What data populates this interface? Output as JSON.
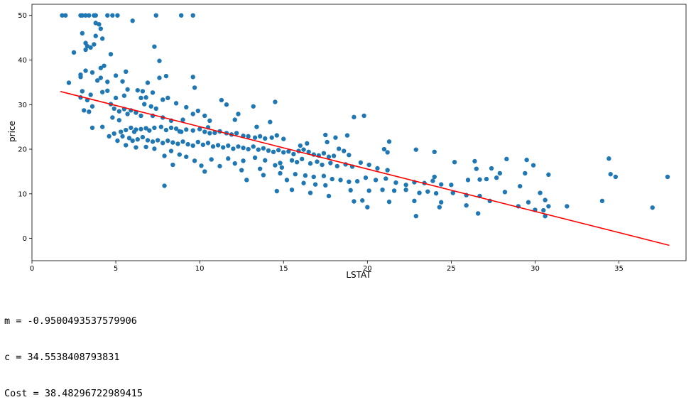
{
  "chart_data": {
    "type": "scatter",
    "xlabel": "LSTAT",
    "ylabel": "price",
    "xlim": [
      0,
      39
    ],
    "ylim": [
      -5,
      52.5
    ],
    "xticks": [
      0,
      5,
      10,
      15,
      20,
      25,
      30,
      35
    ],
    "yticks": [
      0,
      10,
      20,
      30,
      40,
      50
    ],
    "point_color": "#1f77b4",
    "line_color": "#ff0000",
    "points": [
      [
        1.8,
        50
      ],
      [
        2.0,
        50
      ],
      [
        2.9,
        50
      ],
      [
        3.0,
        50
      ],
      [
        3.2,
        50
      ],
      [
        3.4,
        50
      ],
      [
        3.7,
        50
      ],
      [
        3.8,
        50
      ],
      [
        4.5,
        50
      ],
      [
        4.8,
        50
      ],
      [
        5.1,
        50
      ],
      [
        7.4,
        50
      ],
      [
        8.9,
        50
      ],
      [
        9.6,
        50
      ],
      [
        6.0,
        48.8
      ],
      [
        3.8,
        48.3
      ],
      [
        4.0,
        48
      ],
      [
        3.8,
        45.4
      ],
      [
        4.2,
        44.8
      ],
      [
        3.2,
        43.8
      ],
      [
        3.3,
        43.1
      ],
      [
        3.0,
        46
      ],
      [
        3.7,
        43.5
      ],
      [
        4.1,
        47
      ],
      [
        3.2,
        42.3
      ],
      [
        3.5,
        42.8
      ],
      [
        2.5,
        41.7
      ],
      [
        4.7,
        41.3
      ],
      [
        7.3,
        43
      ],
      [
        7.6,
        39.8
      ],
      [
        4.3,
        38.7
      ],
      [
        4.1,
        38.2
      ],
      [
        3.2,
        37.6
      ],
      [
        2.2,
        34.9
      ],
      [
        2.9,
        36.2
      ],
      [
        3.6,
        37.2
      ],
      [
        3.9,
        35.4
      ],
      [
        4.5,
        35.1
      ],
      [
        5.0,
        36.5
      ],
      [
        5.4,
        35.2
      ],
      [
        5.7,
        33.4
      ],
      [
        6.3,
        33.2
      ],
      [
        6.6,
        33
      ],
      [
        6.9,
        34.9
      ],
      [
        7.6,
        36
      ],
      [
        8.0,
        36.4
      ],
      [
        9.6,
        36.2
      ],
      [
        9.7,
        33.8
      ],
      [
        7.2,
        32.7
      ],
      [
        6.8,
        31.6
      ],
      [
        6.5,
        31.5
      ],
      [
        5.5,
        32
      ],
      [
        5.0,
        31.5
      ],
      [
        4.5,
        33.1
      ],
      [
        4.2,
        32.8
      ],
      [
        3.5,
        32.2
      ],
      [
        3.3,
        31
      ],
      [
        3.0,
        33
      ],
      [
        2.9,
        31.6
      ],
      [
        3.1,
        28.7
      ],
      [
        3.4,
        28.4
      ],
      [
        3.6,
        29.6
      ],
      [
        4.7,
        30.1
      ],
      [
        4.9,
        29.1
      ],
      [
        5.2,
        28.5
      ],
      [
        5.5,
        29
      ],
      [
        5.9,
        28.7
      ],
      [
        6.2,
        28.2
      ],
      [
        6.7,
        30.1
      ],
      [
        7.1,
        29.6
      ],
      [
        7.4,
        29.1
      ],
      [
        7.8,
        31.1
      ],
      [
        8.1,
        31.5
      ],
      [
        8.6,
        30.3
      ],
      [
        9.2,
        29.4
      ],
      [
        9.6,
        27.9
      ],
      [
        9.9,
        28.6
      ],
      [
        10.3,
        27.5
      ],
      [
        11.3,
        31.0
      ],
      [
        11.6,
        30
      ],
      [
        12.3,
        27.9
      ],
      [
        13.2,
        29.6
      ],
      [
        14.5,
        30.6
      ],
      [
        12.1,
        26.6
      ],
      [
        10.6,
        26.4
      ],
      [
        9.0,
        26.6
      ],
      [
        8.3,
        26.4
      ],
      [
        7.8,
        27.1
      ],
      [
        7.2,
        27.5
      ],
      [
        6.5,
        27.5
      ],
      [
        5.7,
        27.9
      ],
      [
        5.2,
        26.5
      ],
      [
        4.8,
        27.1
      ],
      [
        4.2,
        25.0
      ],
      [
        3.6,
        24.8
      ],
      [
        4.9,
        23.5
      ],
      [
        5.3,
        23.9
      ],
      [
        5.6,
        24.3
      ],
      [
        5.9,
        24.8
      ],
      [
        6.2,
        24.4
      ],
      [
        6.5,
        24.5
      ],
      [
        6.8,
        24.7
      ],
      [
        7.0,
        24.2
      ],
      [
        7.3,
        24.8
      ],
      [
        7.7,
        25.0
      ],
      [
        8.0,
        24.3
      ],
      [
        8.3,
        24.8
      ],
      [
        8.6,
        24.6
      ],
      [
        8.9,
        23.9
      ],
      [
        9.2,
        24.4
      ],
      [
        9.6,
        24.2
      ],
      [
        10.0,
        24.5
      ],
      [
        10.3,
        23.9
      ],
      [
        10.6,
        23.6
      ],
      [
        10.9,
        23.7
      ],
      [
        11.2,
        24.0
      ],
      [
        11.6,
        23.6
      ],
      [
        11.9,
        23.3
      ],
      [
        12.2,
        23.6
      ],
      [
        12.6,
        23.0
      ],
      [
        12.9,
        22.9
      ],
      [
        13.3,
        22.6
      ],
      [
        13.6,
        22.9
      ],
      [
        13.9,
        22.4
      ],
      [
        14.3,
        22.6
      ],
      [
        14.6,
        23.1
      ],
      [
        15.0,
        22.3
      ],
      [
        13.4,
        25.0
      ],
      [
        14.2,
        26.1
      ],
      [
        10.5,
        24.9
      ],
      [
        8.8,
        24.0
      ],
      [
        6.1,
        23.9
      ],
      [
        5.4,
        22.9
      ],
      [
        5.8,
        22.5
      ],
      [
        6.0,
        21.9
      ],
      [
        6.3,
        22.2
      ],
      [
        6.6,
        22.7
      ],
      [
        6.9,
        22.0
      ],
      [
        7.2,
        21.7
      ],
      [
        7.5,
        22.0
      ],
      [
        7.8,
        21.4
      ],
      [
        8.1,
        21.9
      ],
      [
        8.4,
        21.5
      ],
      [
        8.7,
        21.2
      ],
      [
        9.0,
        21.7
      ],
      [
        9.3,
        21.1
      ],
      [
        9.6,
        20.8
      ],
      [
        9.9,
        21.6
      ],
      [
        10.2,
        21.0
      ],
      [
        10.5,
        21.4
      ],
      [
        10.8,
        20.6
      ],
      [
        11.1,
        20.9
      ],
      [
        11.4,
        20.4
      ],
      [
        11.7,
        20.8
      ],
      [
        12.0,
        20.1
      ],
      [
        12.3,
        20.6
      ],
      [
        12.6,
        20.3
      ],
      [
        12.9,
        20.0
      ],
      [
        13.2,
        20.6
      ],
      [
        13.5,
        19.9
      ],
      [
        13.8,
        20.2
      ],
      [
        14.1,
        19.7
      ],
      [
        14.4,
        19.4
      ],
      [
        14.7,
        19.8
      ],
      [
        15.0,
        19.3
      ],
      [
        15.3,
        19.5
      ],
      [
        15.6,
        18.9
      ],
      [
        15.9,
        19.6
      ],
      [
        16.2,
        19.9
      ],
      [
        16.5,
        19.4
      ],
      [
        16.8,
        18.8
      ],
      [
        17.1,
        18.6
      ],
      [
        17.4,
        19.1
      ],
      [
        17.7,
        18.3
      ],
      [
        18.0,
        18.5
      ],
      [
        18.3,
        20.1
      ],
      [
        18.6,
        19.6
      ],
      [
        18.9,
        18.7
      ],
      [
        16.0,
        20.8
      ],
      [
        16.4,
        21.3
      ],
      [
        17.6,
        21.6
      ],
      [
        17.5,
        23.2
      ],
      [
        18.1,
        22.6
      ],
      [
        18.8,
        23.1
      ],
      [
        19.2,
        27.2
      ],
      [
        19.8,
        27.5
      ],
      [
        21.3,
        21.7
      ],
      [
        21.0,
        20.0
      ],
      [
        21.2,
        19.3
      ],
      [
        22.9,
        19.9
      ],
      [
        24.0,
        19.4
      ],
      [
        15.5,
        17.5
      ],
      [
        15.8,
        17.1
      ],
      [
        16.1,
        17.8
      ],
      [
        16.6,
        16.8
      ],
      [
        17.0,
        17.2
      ],
      [
        17.3,
        16.5
      ],
      [
        17.8,
        16.9
      ],
      [
        18.2,
        16.2
      ],
      [
        18.7,
        16.6
      ],
      [
        19.1,
        16.1
      ],
      [
        19.6,
        17.0
      ],
      [
        20.1,
        16.5
      ],
      [
        20.6,
        15.7
      ],
      [
        21.2,
        15.3
      ],
      [
        14.8,
        16.9
      ],
      [
        14.5,
        16.4
      ],
      [
        13.9,
        17.5
      ],
      [
        13.3,
        18.1
      ],
      [
        12.6,
        17.4
      ],
      [
        12.1,
        16.8
      ],
      [
        11.7,
        17.9
      ],
      [
        11.2,
        16.2
      ],
      [
        10.7,
        17.7
      ],
      [
        10.1,
        16.3
      ],
      [
        9.7,
        17.4
      ],
      [
        9.2,
        18.3
      ],
      [
        8.8,
        18.8
      ],
      [
        8.3,
        19.6
      ],
      [
        7.9,
        18.5
      ],
      [
        7.3,
        20.1
      ],
      [
        6.8,
        20.5
      ],
      [
        6.2,
        20.4
      ],
      [
        5.6,
        20.9
      ],
      [
        5.1,
        21.9
      ],
      [
        4.6,
        22.9
      ],
      [
        8.4,
        16.5
      ],
      [
        10.3,
        15.0
      ],
      [
        12.5,
        15.3
      ],
      [
        13.6,
        15.6
      ],
      [
        14.9,
        15.9
      ],
      [
        15.7,
        14.4
      ],
      [
        16.3,
        14.1
      ],
      [
        16.8,
        13.8
      ],
      [
        17.4,
        14.0
      ],
      [
        17.9,
        13.3
      ],
      [
        18.4,
        13.1
      ],
      [
        18.9,
        12.7
      ],
      [
        19.4,
        12.8
      ],
      [
        19.9,
        13.6
      ],
      [
        20.5,
        13.1
      ],
      [
        21.1,
        13.4
      ],
      [
        21.7,
        12.5
      ],
      [
        22.3,
        12.0
      ],
      [
        22.8,
        12.6
      ],
      [
        23.4,
        12.4
      ],
      [
        23.9,
        12.9
      ],
      [
        24.4,
        12.1
      ],
      [
        25.0,
        12.0
      ],
      [
        26.0,
        13.1
      ],
      [
        26.7,
        13.2
      ],
      [
        27.1,
        13.3
      ],
      [
        27.7,
        13.6
      ],
      [
        24.0,
        13.8
      ],
      [
        25.2,
        17.1
      ],
      [
        26.4,
        17.3
      ],
      [
        26.5,
        15.6
      ],
      [
        27.4,
        15.7
      ],
      [
        27.9,
        14.6
      ],
      [
        28.3,
        17.8
      ],
      [
        29.5,
        17.6
      ],
      [
        29.9,
        16.4
      ],
      [
        29.4,
        14.6
      ],
      [
        30.8,
        14.3
      ],
      [
        34.4,
        17.9
      ],
      [
        34.5,
        14.4
      ],
      [
        34.8,
        13.8
      ],
      [
        37.9,
        13.8
      ],
      [
        15.2,
        13.1
      ],
      [
        14.8,
        14.6
      ],
      [
        13.8,
        14.2
      ],
      [
        12.8,
        13.1
      ],
      [
        16.2,
        12.4
      ],
      [
        16.9,
        12.1
      ],
      [
        17.5,
        11.9
      ],
      [
        19.0,
        10.8
      ],
      [
        20.1,
        10.7
      ],
      [
        20.9,
        10.9
      ],
      [
        21.6,
        10.7
      ],
      [
        22.3,
        10.9
      ],
      [
        23.1,
        10.2
      ],
      [
        23.6,
        10.5
      ],
      [
        24.1,
        10.1
      ],
      [
        25.1,
        10.2
      ],
      [
        25.9,
        9.7
      ],
      [
        26.7,
        9.5
      ],
      [
        27.3,
        8.4
      ],
      [
        28.2,
        10.4
      ],
      [
        29.1,
        11.7
      ],
      [
        29.6,
        8.1
      ],
      [
        30.3,
        10.2
      ],
      [
        30.6,
        8.6
      ],
      [
        30.5,
        6.3
      ],
      [
        31.9,
        7.2
      ],
      [
        34.0,
        8.4
      ],
      [
        37.0,
        6.9
      ],
      [
        29.0,
        7.2
      ],
      [
        30.0,
        6.4
      ],
      [
        30.6,
        5.0
      ],
      [
        30.8,
        7.2
      ],
      [
        26.6,
        5.6
      ],
      [
        24.3,
        7.0
      ],
      [
        22.9,
        5.0
      ],
      [
        24.4,
        8.1
      ],
      [
        22.8,
        8.4
      ],
      [
        21.3,
        8.2
      ],
      [
        20.0,
        7.0
      ],
      [
        19.7,
        8.5
      ],
      [
        19.2,
        8.3
      ],
      [
        17.7,
        9.5
      ],
      [
        16.6,
        10.2
      ],
      [
        15.5,
        10.9
      ],
      [
        14.6,
        10.6
      ],
      [
        25.9,
        7.4
      ],
      [
        7.9,
        11.8
      ],
      [
        4.1,
        36.0
      ],
      [
        5.6,
        37.4
      ],
      [
        2.9,
        36.7
      ]
    ],
    "fit_line": {
      "x": [
        1.7,
        38.0
      ],
      "y": [
        32.94,
        -1.55
      ]
    }
  },
  "output": {
    "lines": [
      "m = -0.9500493537579906",
      "c = 34.5538408793831",
      "Cost = 38.48296722989415"
    ]
  }
}
